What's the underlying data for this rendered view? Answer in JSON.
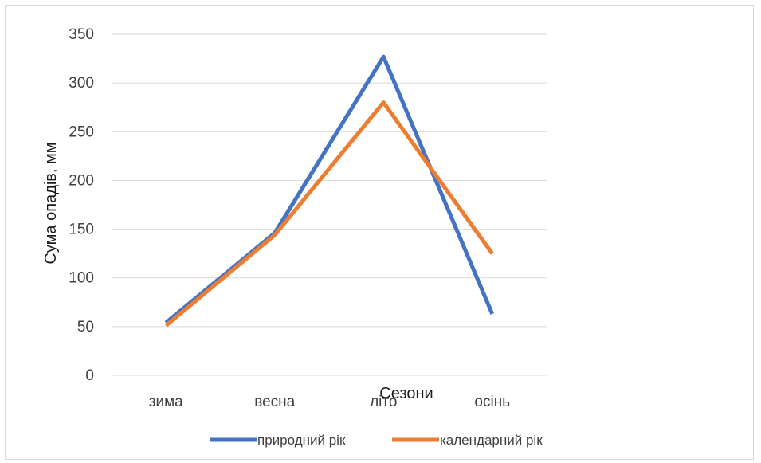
{
  "chart_data": {
    "type": "line",
    "title": "",
    "xlabel": "Сезони",
    "ylabel": "Сума опадів, мм",
    "categories": [
      "зима",
      "весна",
      "літо",
      "осінь"
    ],
    "series": [
      {
        "name": "природний рік",
        "color": "#4472C4",
        "values": [
          54,
          146,
          327,
          63
        ]
      },
      {
        "name": "календарний рік",
        "color": "#ED7D31",
        "values": [
          51,
          144,
          280,
          125
        ]
      }
    ],
    "ylim": [
      0,
      350
    ],
    "yticks": [
      0,
      50,
      100,
      150,
      200,
      250,
      300,
      350
    ],
    "grid": true,
    "legend_position": "bottom"
  }
}
